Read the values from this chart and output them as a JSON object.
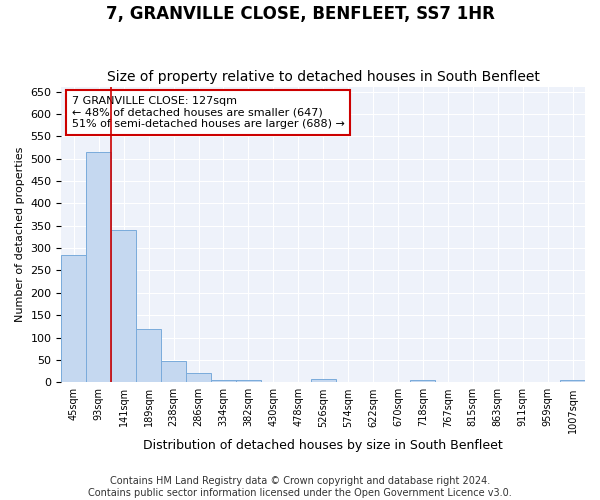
{
  "title": "7, GRANVILLE CLOSE, BENFLEET, SS7 1HR",
  "subtitle": "Size of property relative to detached houses in South Benfleet",
  "xlabel": "Distribution of detached houses by size in South Benfleet",
  "ylabel": "Number of detached properties",
  "bins": [
    "45sqm",
    "93sqm",
    "141sqm",
    "189sqm",
    "238sqm",
    "286sqm",
    "334sqm",
    "382sqm",
    "430sqm",
    "478sqm",
    "526sqm",
    "574sqm",
    "622sqm",
    "670sqm",
    "718sqm",
    "767sqm",
    "815sqm",
    "863sqm",
    "911sqm",
    "959sqm",
    "1007sqm"
  ],
  "values": [
    285,
    515,
    340,
    120,
    47,
    20,
    5,
    5,
    0,
    0,
    8,
    0,
    0,
    0,
    5,
    0,
    0,
    0,
    0,
    0,
    5
  ],
  "bar_color": "#c5d8f0",
  "bar_edge_color": "#7aabdb",
  "vline_color": "#cc0000",
  "annotation_text": "7 GRANVILLE CLOSE: 127sqm\n← 48% of detached houses are smaller (647)\n51% of semi-detached houses are larger (688) →",
  "annotation_box_color": "white",
  "annotation_box_edge_color": "#cc0000",
  "footer": "Contains HM Land Registry data © Crown copyright and database right 2024.\nContains public sector information licensed under the Open Government Licence v3.0.",
  "title_fontsize": 12,
  "subtitle_fontsize": 10,
  "ylabel_fontsize": 8,
  "xlabel_fontsize": 9,
  "footer_fontsize": 7,
  "ylim": [
    0,
    660
  ],
  "yticks": [
    0,
    50,
    100,
    150,
    200,
    250,
    300,
    350,
    400,
    450,
    500,
    550,
    600,
    650
  ],
  "background_color": "#eef2fa",
  "vline_bin": 1.5
}
